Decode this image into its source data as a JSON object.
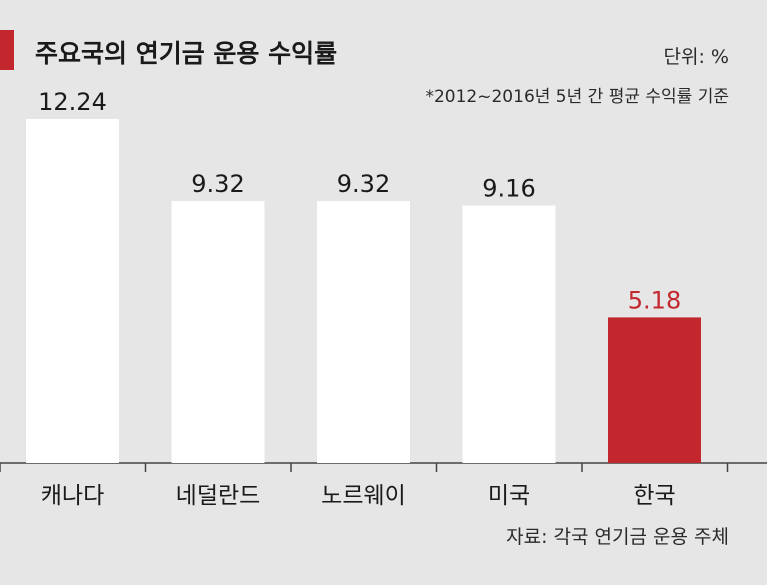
{
  "header": {
    "title": "주요국의 연기금 운용 수익률",
    "unit": "단위: %",
    "note": "*2012~2016년 5년 간 평균 수익률 기준"
  },
  "footer": {
    "source": "자료: 각국 연기금 운용 주체"
  },
  "colors": {
    "accent": "#c1272d",
    "bar": "#ffffff",
    "background": "#e6e6e6",
    "text": "#1a1a1a"
  },
  "chart_data": {
    "type": "bar",
    "title": "주요국의 연기금 운용 수익률",
    "xlabel": "",
    "ylabel": "",
    "categories": [
      "캐나다",
      "네덜란드",
      "노르웨이",
      "미국",
      "한국"
    ],
    "values": [
      12.24,
      9.32,
      9.32,
      9.16,
      5.18
    ],
    "value_labels": [
      "12.24",
      "9.32",
      "9.32",
      "9.16",
      "5.18"
    ],
    "highlight_index": 4,
    "ylim": [
      0,
      12.24
    ],
    "grid": false,
    "legend": "none"
  }
}
